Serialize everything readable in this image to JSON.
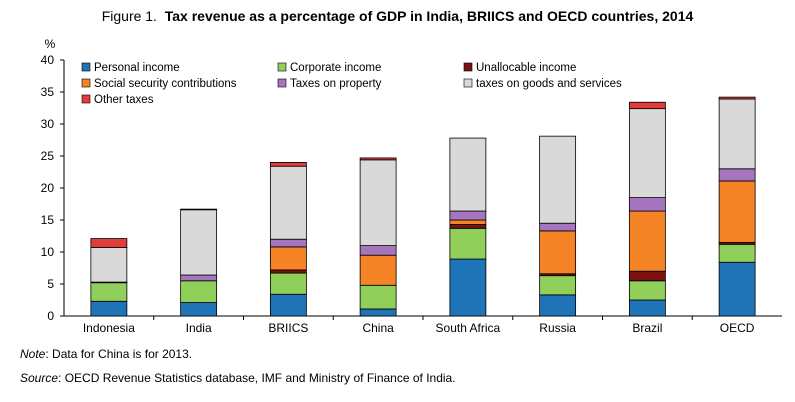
{
  "figure": {
    "label": "Figure 1.",
    "title": "Tax revenue as a percentage of GDP in India, BRIICS and OECD countries, 2014"
  },
  "chart_data": {
    "type": "bar",
    "stacked": true,
    "ylabel": "%",
    "ylim": [
      0,
      40
    ],
    "yticks": [
      0,
      5,
      10,
      15,
      20,
      25,
      30,
      35,
      40
    ],
    "grid": false,
    "legend_position": "top-left",
    "categories": [
      "Indonesia",
      "India",
      "BRIICS",
      "China",
      "South Africa",
      "Russia",
      "Brazil",
      "OECD"
    ],
    "series": [
      {
        "name": "Personal income",
        "color": "#1f73b7",
        "values": [
          2.3,
          2.1,
          3.4,
          1.1,
          8.9,
          3.3,
          2.5,
          8.4
        ]
      },
      {
        "name": "Corporate income",
        "color": "#8fcf5a",
        "values": [
          2.9,
          3.4,
          3.3,
          3.7,
          4.8,
          3.0,
          3.0,
          2.8
        ]
      },
      {
        "name": "Unallocable income",
        "color": "#7b1111",
        "values": [
          0.1,
          0.0,
          0.5,
          0.0,
          0.6,
          0.3,
          1.5,
          0.3
        ]
      },
      {
        "name": "Social security contributions",
        "color": "#f58426",
        "values": [
          0.0,
          0.0,
          3.6,
          4.7,
          0.7,
          6.7,
          9.4,
          9.6
        ]
      },
      {
        "name": "Taxes on property",
        "color": "#a575c0",
        "values": [
          0.0,
          0.9,
          1.2,
          1.5,
          1.4,
          1.2,
          2.1,
          1.9
        ]
      },
      {
        "name": "taxes on goods and services",
        "color": "#d9d9d9",
        "values": [
          5.4,
          10.2,
          11.4,
          13.4,
          11.4,
          13.6,
          13.9,
          10.9
        ]
      },
      {
        "name": "Other taxes",
        "color": "#e03c3c",
        "values": [
          1.4,
          0.1,
          0.6,
          0.3,
          0.0,
          0.0,
          1.0,
          0.3
        ]
      }
    ]
  },
  "notes": {
    "note_label": "Note",
    "note_text": ": Data for China is for 2013.",
    "source_label": "Source",
    "source_text": ": OECD Revenue Statistics database, IMF and Ministry of Finance of India."
  }
}
